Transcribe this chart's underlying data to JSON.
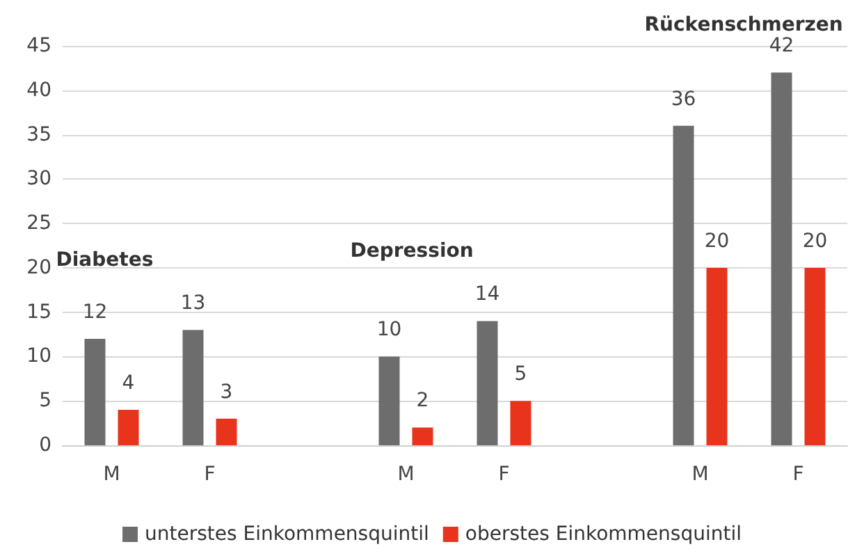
{
  "chart_data": {
    "type": "bar",
    "categories": [
      "M",
      "F",
      null,
      "M",
      "F",
      null,
      "M",
      "F"
    ],
    "series": [
      {
        "name": "unterstes Einkommensquintil",
        "color": "#6d6d6d",
        "values": [
          12,
          13,
          null,
          10,
          14,
          null,
          36,
          42
        ]
      },
      {
        "name": "oberstes Einkommensquintil",
        "color": "#e8341c",
        "values": [
          4,
          3,
          null,
          2,
          5,
          null,
          20,
          20
        ]
      }
    ],
    "ylim": [
      0,
      45
    ],
    "yticks": [
      0,
      5,
      10,
      15,
      20,
      25,
      30,
      35,
      40,
      45
    ],
    "grid": "y",
    "legend": "bottom",
    "data_labels": true,
    "annotations": [
      "Diabetes",
      "Depression",
      "Rückenschmerzen"
    ]
  }
}
